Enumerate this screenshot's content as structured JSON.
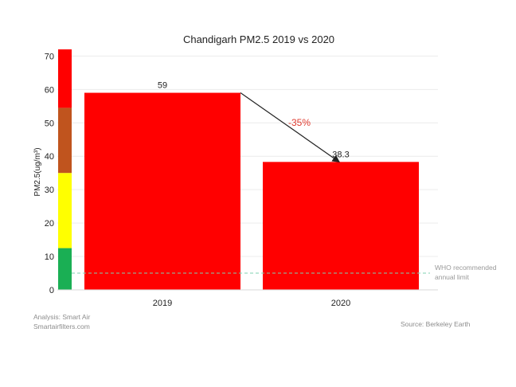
{
  "chart_data": {
    "type": "bar",
    "title": "Chandigarh PM2.5 2019 vs 2020",
    "ylabel": "PM2.5(ug/m³)",
    "xlabel": "",
    "categories": [
      "2019",
      "2020"
    ],
    "values": [
      59,
      38.3
    ],
    "value_labels": [
      "59",
      "38.3"
    ],
    "bar_color": "#ff0000",
    "ylim": [
      0,
      72
    ],
    "yticks": [
      0,
      10,
      20,
      30,
      40,
      50,
      60,
      70
    ],
    "grid": true,
    "change_annotation": {
      "text": "-35%",
      "color": "#e03c31"
    },
    "who_limit": {
      "value": 5,
      "label_line1": "WHO recommended",
      "label_line2": "annual limit",
      "color": "#7fd1b0"
    },
    "aqi_bands": [
      {
        "from": 0,
        "to": 12.5,
        "color": "#1aaf54"
      },
      {
        "from": 12.5,
        "to": 35,
        "color": "#ffff00"
      },
      {
        "from": 35,
        "to": 54.5,
        "color": "#c0541e"
      },
      {
        "from": 54.5,
        "to": 72,
        "color": "#ff0000"
      }
    ]
  },
  "credits": {
    "analysis": "Analysis: Smart Air",
    "site": "Smartairfilters.com",
    "source": "Source: Berkeley  Earth"
  }
}
